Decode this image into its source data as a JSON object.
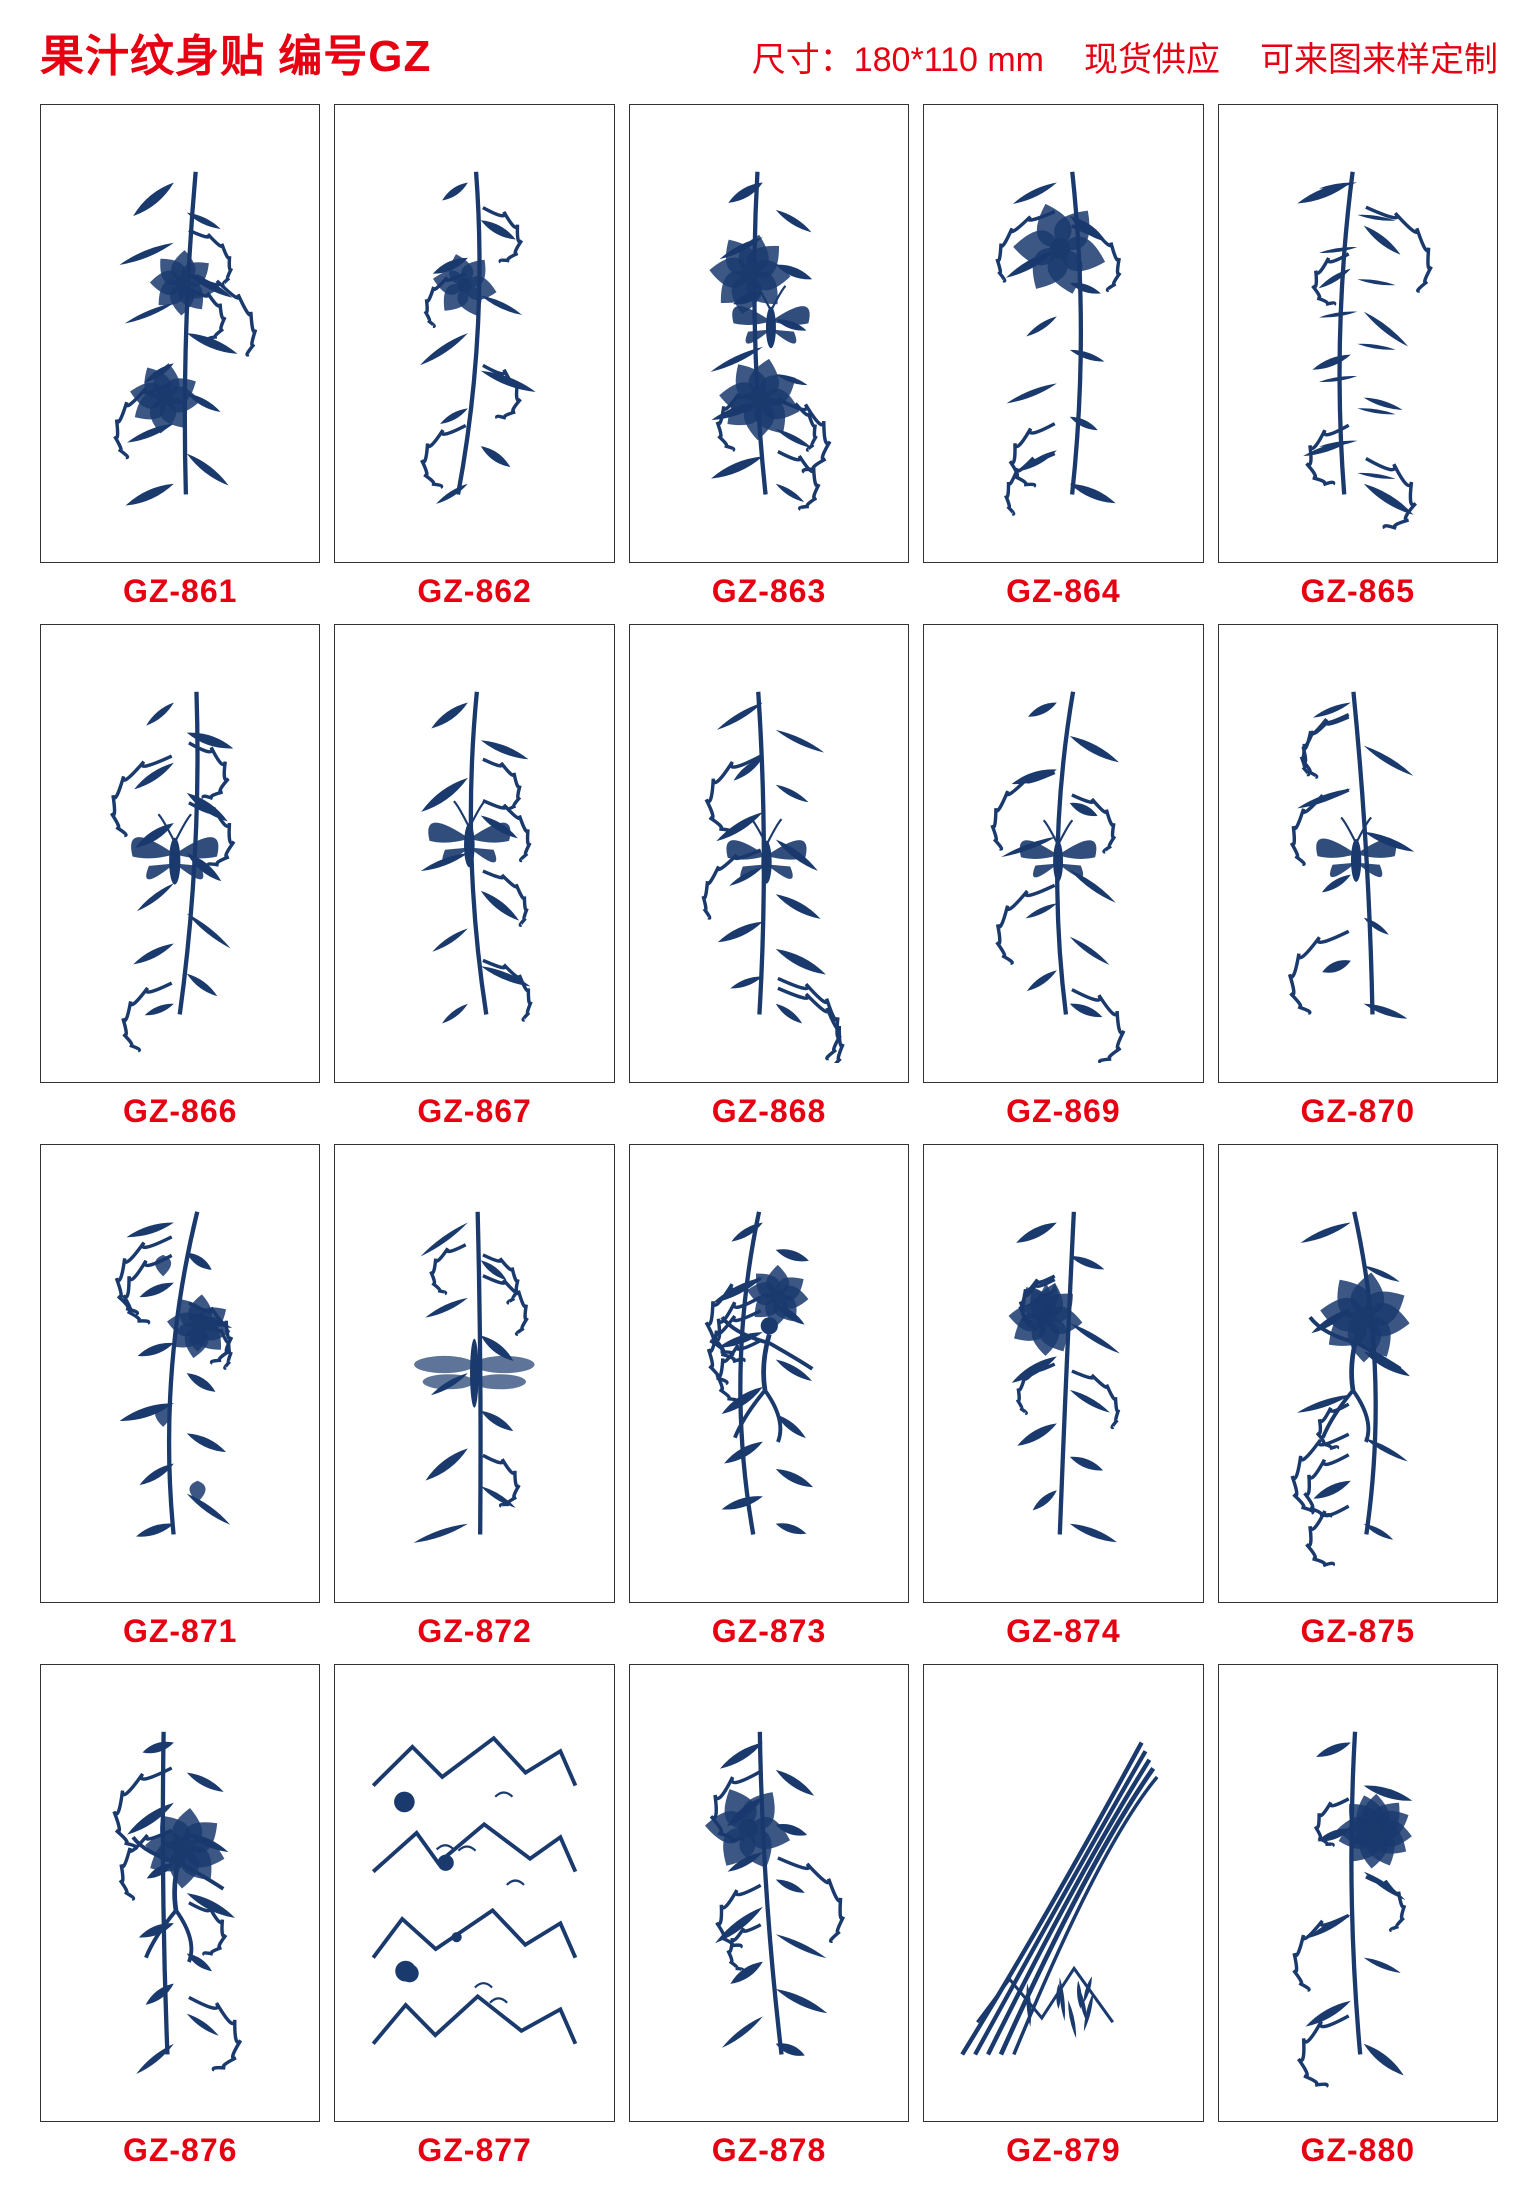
{
  "colors": {
    "accent": "#e60012",
    "ink": "#1a3a6e",
    "border": "#333333",
    "text": "#111111",
    "bg": "#ffffff"
  },
  "header": {
    "title": "果汁纹身贴 编号GZ",
    "size_label": "尺寸：180*110 mm",
    "stock_label": "现货供应",
    "custom_label": "可来图来样定制"
  },
  "grid": {
    "columns": 5,
    "rows": 4,
    "thumb_aspect": "110/180",
    "items": [
      {
        "code": "GZ-861",
        "motif": "peony-branch"
      },
      {
        "code": "GZ-862",
        "motif": "lily-grass"
      },
      {
        "code": "GZ-863",
        "motif": "peony-butterfly"
      },
      {
        "code": "GZ-864",
        "motif": "lily-swirl"
      },
      {
        "code": "GZ-865",
        "motif": "fern-mirror"
      },
      {
        "code": "GZ-866",
        "motif": "butterfly-vines-a"
      },
      {
        "code": "GZ-867",
        "motif": "butterfly-leaves"
      },
      {
        "code": "GZ-868",
        "motif": "butterfly-ornate"
      },
      {
        "code": "GZ-869",
        "motif": "butterfly-scroll"
      },
      {
        "code": "GZ-870",
        "motif": "butterfly-filigree"
      },
      {
        "code": "GZ-871",
        "motif": "bellflower-vine"
      },
      {
        "code": "GZ-872",
        "motif": "dragonfly-feathers"
      },
      {
        "code": "GZ-873",
        "motif": "dancer-flower-a"
      },
      {
        "code": "GZ-874",
        "motif": "lotus-hands"
      },
      {
        "code": "GZ-875",
        "motif": "dancer-lotus"
      },
      {
        "code": "GZ-876",
        "motif": "dancer-flower-b"
      },
      {
        "code": "GZ-877",
        "motif": "mountain-water"
      },
      {
        "code": "GZ-878",
        "motif": "lily-sparse"
      },
      {
        "code": "GZ-879",
        "motif": "reed-arc"
      },
      {
        "code": "GZ-880",
        "motif": "spider-lily"
      }
    ]
  }
}
